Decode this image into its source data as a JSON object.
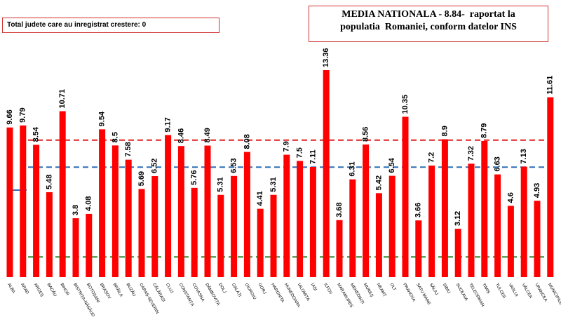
{
  "chart_data": {
    "type": "bar",
    "title": "MEDIA NATIONALA - 8.84-  raportat la populatia  Romaniei, conform datelor INS",
    "annotation": "Total judete care au inregistrat crestere: 0",
    "categories": [
      "ALBA",
      "ARAD",
      "ARGEȘ",
      "BACĂU",
      "BIHOR",
      "BISTRIȚA-NĂSĂUD",
      "BOTOȘANI",
      "BRAȘOV",
      "BRĂILA",
      "BUZĂU",
      "CARAȘ-SEVERIN",
      "CĂLĂRAȘI",
      "CLUJ",
      "CONSTANȚA",
      "COVASNA",
      "DÂMBOVIȚA",
      "DOLJ",
      "GALAȚI",
      "GIURGIU",
      "GORJ",
      "HARGHITA",
      "HUNEDOARA",
      "IALOMIȚA",
      "IAȘI",
      "ILFOV",
      "MARAMUREȘ",
      "MEHEDINȚI",
      "MUREȘ",
      "NEAMȚ",
      "OLT",
      "PRAHOVA",
      "SATU MARE",
      "SĂLAJ",
      "SIBIU",
      "SUCEAVA",
      "TELEORMAN",
      "TIMIȘ",
      "TULCEA",
      "VASLUI",
      "VÂLCEA",
      "VRANCEA",
      "MUNICIPIUL BUCUREȘTI"
    ],
    "values": [
      9.66,
      9.79,
      8.54,
      5.48,
      10.71,
      3.8,
      4.08,
      9.54,
      8.5,
      7.58,
      5.69,
      6.52,
      9.17,
      8.46,
      5.76,
      8.49,
      5.31,
      6.53,
      8.08,
      4.41,
      5.31,
      7.9,
      7.5,
      7.11,
      13.36,
      3.68,
      6.31,
      8.56,
      5.42,
      6.54,
      10.35,
      3.66,
      7.2,
      8.9,
      3.12,
      7.32,
      8.79,
      6.63,
      4.6,
      7.13,
      4.93,
      11.61
    ],
    "color": "#ff0000",
    "reference_lines": [
      {
        "value": 8.84,
        "color": "#e02020"
      },
      {
        "value": 7.1,
        "color": "#2a6fb5"
      },
      {
        "value": 1.3,
        "color": "#2e8b2e"
      }
    ]
  }
}
